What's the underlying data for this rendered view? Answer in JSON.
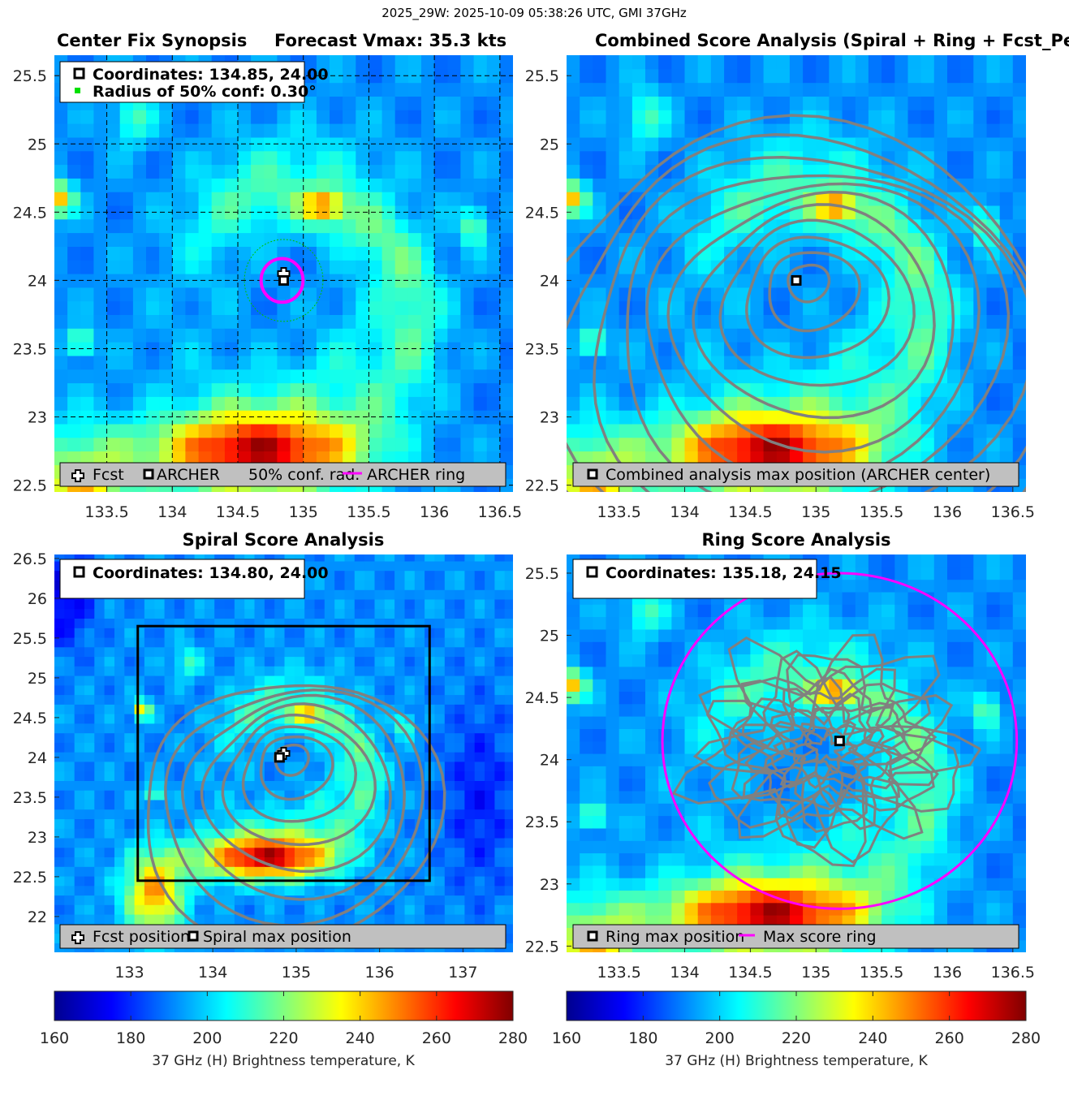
{
  "figure": {
    "suptitle": "2025_29W: 2025-10-09 05:38:26 UTC, GMI 37GHz"
  },
  "colors": {
    "contour": "#808080",
    "ring": "#ff00ff",
    "conf_circle": "#00c000",
    "legend_box": "#c0c0c0"
  },
  "panels": {
    "synopsis": {
      "title_left": "Center Fix Synopsis",
      "title_right": "Forecast Vmax: 35.3 kts",
      "coords_text": "Coordinates: 134.85, 24.00",
      "radius_text": "Radius of 50% conf: 0.30°",
      "legend": {
        "fcst": "Fcst",
        "archer": "ARCHER",
        "conf": "50% conf. rad.",
        "ring": "ARCHER ring"
      }
    },
    "combined": {
      "title": "Combined Score Analysis (Spiral + Ring + Fcst_Pe",
      "legend": "Combined analysis max position (ARCHER center)"
    },
    "spiral": {
      "title": "Spiral Score Analysis",
      "coords_text": "Coordinates: 134.80, 24.00",
      "legend": {
        "fcst": "Fcst position",
        "max": "Spiral max position"
      }
    },
    "ring": {
      "title": "Ring Score Analysis",
      "coords_text": "Coordinates: 135.18, 24.15",
      "legend": {
        "max": "Ring max position",
        "ring": "Max score ring"
      }
    }
  },
  "colorbars": {
    "label": "37 GHz (H) Brightness temperature, K",
    "ticks": [
      "160",
      "180",
      "200",
      "220",
      "240",
      "260",
      "280"
    ]
  },
  "chart_data": [
    {
      "type": "heatmap",
      "name": "Center Fix Synopsis",
      "xlim": [
        133.1,
        136.6
      ],
      "ylim": [
        22.45,
        25.65
      ],
      "xticks": [
        133.5,
        134,
        134.5,
        135,
        135.5,
        136,
        136.5
      ],
      "yticks": [
        22.5,
        23,
        23.5,
        24,
        24.5,
        25,
        25.5
      ],
      "xtick_labels": [
        "133.5",
        "134",
        "134.5",
        "135",
        "135.5",
        "136",
        "136.5"
      ],
      "ytick_labels": [
        "22.5",
        "23",
        "23.5",
        "24",
        "24.5",
        "25",
        "25.5"
      ],
      "grid": true,
      "fcst_position": [
        134.85,
        24.05
      ],
      "archer_center": [
        134.85,
        24.0
      ],
      "confidence_radius_deg": 0.3,
      "archer_ring_radius_deg": 0.16,
      "clim": [
        160,
        280
      ],
      "colormap": "jet"
    },
    {
      "type": "heatmap",
      "name": "Combined Score Analysis",
      "xlim": [
        133.1,
        136.6
      ],
      "ylim": [
        22.45,
        25.65
      ],
      "xticks": [
        133.5,
        134,
        134.5,
        135,
        135.5,
        136,
        136.5
      ],
      "yticks": [
        22.5,
        23,
        23.5,
        24,
        24.5,
        25,
        25.5
      ],
      "xtick_labels": [
        "133.5",
        "134",
        "134.5",
        "135",
        "135.5",
        "136",
        "136.5"
      ],
      "ytick_labels": [
        "22.5",
        "23",
        "23.5",
        "24",
        "24.5",
        "25",
        "25.5"
      ],
      "grid": false,
      "max_position": [
        134.85,
        24.0
      ],
      "contour_levels": 11,
      "clim": [
        160,
        280
      ],
      "colormap": "jet"
    },
    {
      "type": "heatmap",
      "name": "Spiral Score Analysis",
      "xlim": [
        132.1,
        137.6
      ],
      "ylim": [
        21.55,
        26.55
      ],
      "xticks": [
        133,
        134,
        135,
        136,
        137
      ],
      "yticks": [
        22,
        22.5,
        23,
        23.5,
        24,
        24.5,
        25,
        25.5,
        26,
        26.5
      ],
      "xtick_labels": [
        "133",
        "134",
        "135",
        "136",
        "137"
      ],
      "ytick_labels": [
        "22",
        "22.5",
        "23",
        "23.5",
        "24",
        "24.5",
        "25",
        "25.5",
        "26",
        "26.5"
      ],
      "grid": false,
      "fcst_position": [
        134.85,
        24.05
      ],
      "spiral_max_position": [
        134.8,
        24.0
      ],
      "analysis_box": {
        "lon": [
          133.1,
          136.6
        ],
        "lat": [
          22.45,
          25.65
        ]
      },
      "clim": [
        160,
        280
      ],
      "colormap": "jet"
    },
    {
      "type": "heatmap",
      "name": "Ring Score Analysis",
      "xlim": [
        133.1,
        136.6
      ],
      "ylim": [
        22.45,
        25.65
      ],
      "xticks": [
        133.5,
        134,
        134.5,
        135,
        135.5,
        136,
        136.5
      ],
      "yticks": [
        22.5,
        23,
        23.5,
        24,
        24.5,
        25,
        25.5
      ],
      "xtick_labels": [
        "133.5",
        "134",
        "134.5",
        "135",
        "135.5",
        "136",
        "136.5"
      ],
      "ytick_labels": [
        "22.5",
        "23",
        "23.5",
        "24",
        "24.5",
        "25",
        "25.5"
      ],
      "grid": false,
      "ring_max_position": [
        135.18,
        24.15
      ],
      "max_score_ring_radius_deg": 1.35,
      "clim": [
        160,
        280
      ],
      "colormap": "jet"
    }
  ]
}
